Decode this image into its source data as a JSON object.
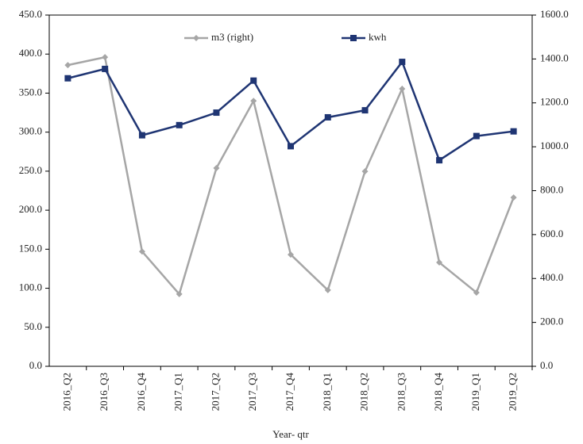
{
  "chart_data": {
    "type": "line",
    "x_label": "Year- qtr",
    "categories": [
      "2016_Q2",
      "2016_Q3",
      "2016_Q4",
      "2017_Q1",
      "2017_Q2",
      "2017_Q3",
      "2017_Q4",
      "2018_Q1",
      "2018_Q2",
      "2018_Q3",
      "2018_Q4",
      "2019_Q1",
      "2019_Q2"
    ],
    "series": [
      {
        "name": "m3 (right)",
        "color": "#a6a6a6",
        "marker": "diamond",
        "axis": "y2",
        "values": [
          1372,
          1408,
          523,
          329,
          903,
          1209,
          509,
          347,
          888,
          1264,
          473,
          336,
          769
        ]
      },
      {
        "name": "kwh",
        "color": "#1f3573",
        "marker": "square",
        "axis": "y",
        "values": [
          369,
          381,
          296,
          309,
          325,
          366,
          282,
          319,
          328,
          390,
          264,
          295,
          301
        ]
      }
    ],
    "ylim": [
      0,
      450
    ],
    "yticks": [
      {
        "value": 0,
        "label": "0.0"
      },
      {
        "value": 50,
        "label": "50.0"
      },
      {
        "value": 100,
        "label": "100.0"
      },
      {
        "value": 150,
        "label": "150.0"
      },
      {
        "value": 200,
        "label": "200.0"
      },
      {
        "value": 250,
        "label": "250.0"
      },
      {
        "value": 300,
        "label": "300.0"
      },
      {
        "value": 350,
        "label": "350.0"
      },
      {
        "value": 400,
        "label": "400.0"
      },
      {
        "value": 450,
        "label": "450.0"
      }
    ],
    "y2lim": [
      0,
      1600
    ],
    "y2ticks": [
      {
        "value": 0,
        "label": "0.0"
      },
      {
        "value": 200,
        "label": "200.0"
      },
      {
        "value": 400,
        "label": "400.0"
      },
      {
        "value": 600,
        "label": "600.0"
      },
      {
        "value": 800,
        "label": "800.0"
      },
      {
        "value": 1000,
        "label": "1000.0"
      },
      {
        "value": 1200,
        "label": "1200.0"
      },
      {
        "value": 1400,
        "label": "1400.0"
      },
      {
        "value": 1600,
        "label": "1600.0"
      }
    ],
    "legend": "top",
    "grid": false
  }
}
